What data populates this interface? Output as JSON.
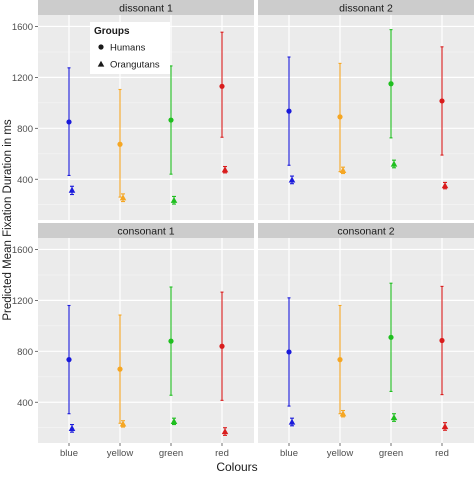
{
  "chart_data": {
    "type": "scatter",
    "subtype": "point-with-error-bars, faceted 2x2",
    "xlabel": "Colours",
    "ylabel": "Predicted Mean Fixation Duration in ms",
    "categories": [
      "blue",
      "yellow",
      "green",
      "red"
    ],
    "ylim": [
      0,
      1600
    ],
    "yticks": [
      400,
      800,
      1200,
      1600
    ],
    "grid": true,
    "legend": {
      "title": "Groups",
      "position": "top-left inside first panel",
      "entries": [
        {
          "label": "Humans",
          "shape": "circle"
        },
        {
          "label": "Orangutans",
          "shape": "triangle"
        }
      ]
    },
    "colors": {
      "blue": "#1a1adb",
      "yellow": "#f5a623",
      "green": "#1fbf1f",
      "red": "#d91c1c"
    },
    "panel_background": "#ebebeb",
    "strip_background": "#cccccc",
    "panels": [
      {
        "title": "dissonant 1",
        "series": [
          {
            "name": "Humans",
            "values": [
              850,
              675,
              865,
              1130
            ],
            "lower": [
              430,
              260,
              440,
              730
            ],
            "upper": [
              1275,
              1105,
              1290,
              1555
            ]
          },
          {
            "name": "Orangutans",
            "values": [
              315,
              255,
              235,
              475
            ],
            "lower": [
              280,
              225,
              205,
              450
            ],
            "upper": [
              345,
              285,
              265,
              500
            ]
          }
        ]
      },
      {
        "title": "dissonant 2",
        "series": [
          {
            "name": "Humans",
            "values": [
              935,
              890,
              1150,
              1015
            ],
            "lower": [
              510,
              460,
              725,
              590
            ],
            "upper": [
              1360,
              1310,
              1575,
              1440
            ]
          },
          {
            "name": "Orangutans",
            "values": [
              395,
              470,
              520,
              350
            ],
            "lower": [
              365,
              445,
              490,
              325
            ],
            "upper": [
              425,
              495,
              550,
              375
            ]
          }
        ]
      },
      {
        "title": "consonant 1",
        "series": [
          {
            "name": "Humans",
            "values": [
              735,
              660,
              880,
              840
            ],
            "lower": [
              310,
              235,
              455,
              415
            ],
            "upper": [
              1160,
              1085,
              1305,
              1265
            ]
          },
          {
            "name": "Orangutans",
            "values": [
              195,
              230,
              250,
              170
            ],
            "lower": [
              165,
              205,
              225,
              140
            ],
            "upper": [
              225,
              255,
              275,
              200
            ]
          }
        ]
      },
      {
        "title": "consonant 2",
        "series": [
          {
            "name": "Humans",
            "values": [
              795,
              735,
              910,
              885
            ],
            "lower": [
              370,
              310,
              485,
              460
            ],
            "upper": [
              1220,
              1160,
              1335,
              1310
            ]
          },
          {
            "name": "Orangutans",
            "values": [
              245,
              310,
              280,
              210
            ],
            "lower": [
              215,
              285,
              250,
              180
            ],
            "upper": [
              275,
              335,
              310,
              240
            ]
          }
        ]
      }
    ]
  }
}
